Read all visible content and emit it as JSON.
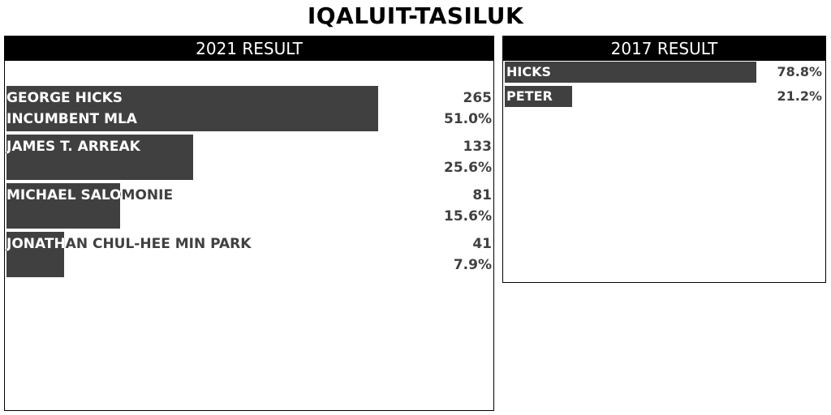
{
  "title": "IQALUIT-TASILUK",
  "chart_data": [
    {
      "type": "bar",
      "title": "2021 RESULT",
      "max_value": 265,
      "rows": [
        {
          "label1": "GEORGE HICKS",
          "label2": "INCUMBENT MLA",
          "votes": "265",
          "pct": "51.0%",
          "value": 265
        },
        {
          "label1": "JAMES T. ARREAK",
          "label2": "",
          "votes": "133",
          "pct": "25.6%",
          "value": 133
        },
        {
          "label1": "MICHAEL SALOMONIE",
          "label2": "",
          "votes": "81",
          "pct": "15.6%",
          "value": 81
        },
        {
          "label1": "JONATHAN CHUL-HEE MIN PARK",
          "label2": "",
          "votes": "41",
          "pct": "7.9%",
          "value": 41
        }
      ]
    },
    {
      "type": "bar",
      "title": "2017 RESULT",
      "max_value": 100,
      "rows": [
        {
          "label": "HICKS",
          "pct": "78.8%",
          "value": 78.8
        },
        {
          "label": "PETER",
          "pct": "21.2%",
          "value": 21.2
        }
      ]
    }
  ],
  "colors": {
    "bar": "#404040",
    "header": "#000000"
  }
}
